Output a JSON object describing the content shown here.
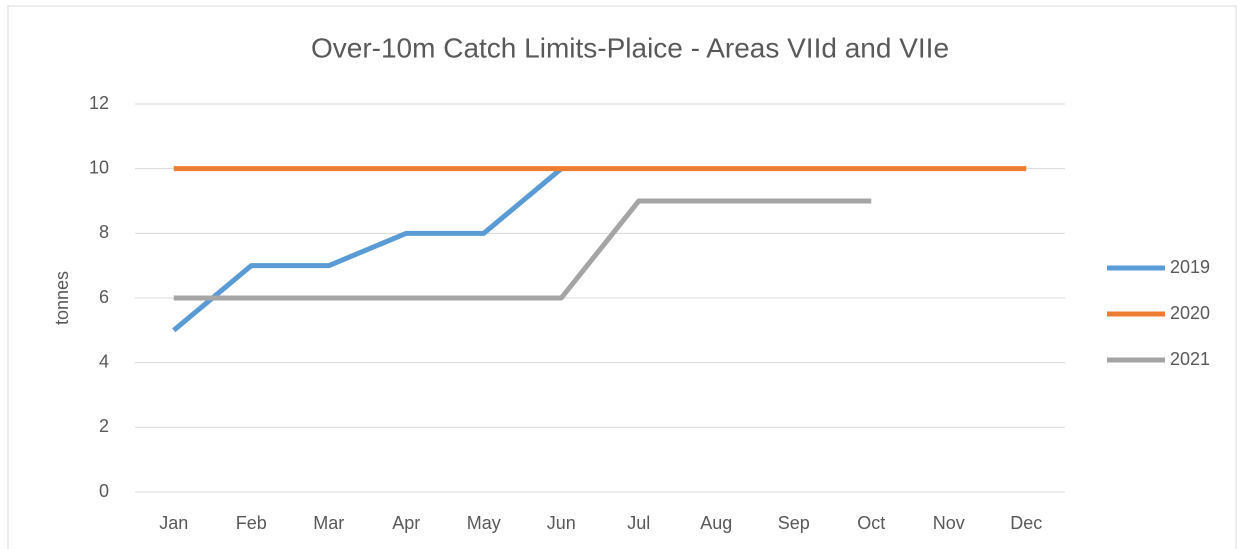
{
  "chart_data": {
    "type": "line",
    "title": "Over-10m Catch Limits-Plaice - Areas VIId and VIIe",
    "y_label": "tonnes",
    "categories": [
      "Jan",
      "Feb",
      "Mar",
      "Apr",
      "May",
      "Jun",
      "Jul",
      "Aug",
      "Sep",
      "Oct",
      "Nov",
      "Dec"
    ],
    "series": [
      {
        "name": "2019",
        "color": "#5b9bd5",
        "values": [
          5,
          7,
          7,
          8,
          8,
          10,
          null,
          null,
          null,
          null,
          null,
          null
        ]
      },
      {
        "name": "2020",
        "color": "#ed7d31",
        "values": [
          10,
          10,
          10,
          10,
          10,
          10,
          10,
          10,
          10,
          10,
          10,
          10
        ]
      },
      {
        "name": "2021",
        "color": "#a5a5a5",
        "values": [
          6,
          6,
          6,
          6,
          6,
          6,
          9,
          9,
          9,
          9,
          null,
          null
        ]
      }
    ],
    "ylim": [
      0,
      12
    ],
    "yticks": [
      0,
      2,
      4,
      6,
      8,
      10,
      12
    ],
    "grid": true,
    "legend": "right"
  }
}
